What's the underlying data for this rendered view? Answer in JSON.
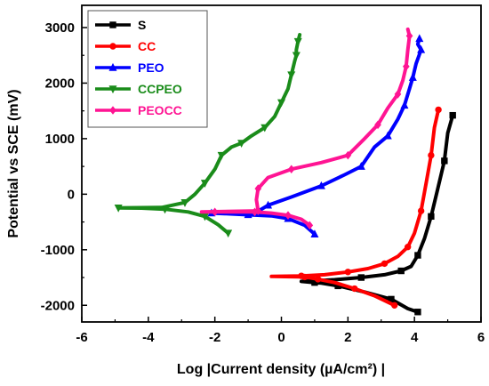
{
  "chart_data": {
    "type": "line",
    "xlabel": "Log |Current density (µA/cm²) |",
    "ylabel": "Potential  vs SCE (mV)",
    "xlim": [
      -6,
      6
    ],
    "ylim": [
      -2300,
      3400
    ],
    "xticks": [
      -6,
      -4,
      -2,
      0,
      2,
      4,
      6
    ],
    "yticks": [
      -2000,
      -1000,
      0,
      1000,
      2000,
      3000
    ],
    "legend_position": "top-left",
    "grid": false,
    "series": [
      {
        "name": "S",
        "color": "#000000",
        "marker": "square",
        "x": [
          4.1,
          3.8,
          3.3,
          2.5,
          1.7,
          1.2,
          1.0,
          0.6,
          1.0,
          1.6,
          2.4,
          3.1,
          3.6,
          3.9,
          4.1,
          4.3,
          4.5,
          4.7,
          4.9,
          5.0,
          5.15
        ],
        "y": [
          -2120,
          -2060,
          -1890,
          -1760,
          -1650,
          -1600,
          -1590,
          -1570,
          -1560,
          -1540,
          -1500,
          -1450,
          -1380,
          -1300,
          -1100,
          -800,
          -400,
          100,
          600,
          1100,
          1420
        ]
      },
      {
        "name": "CC",
        "color": "#ff0000",
        "marker": "circle",
        "x": [
          3.4,
          2.8,
          2.2,
          1.6,
          1.1,
          0.9,
          0.7,
          -0.3,
          0.6,
          1.3,
          2.0,
          2.6,
          3.1,
          3.5,
          3.8,
          4.0,
          4.2,
          4.35,
          4.5,
          4.6,
          4.72
        ],
        "y": [
          -2000,
          -1830,
          -1700,
          -1590,
          -1530,
          -1510,
          -1490,
          -1480,
          -1470,
          -1450,
          -1400,
          -1340,
          -1250,
          -1120,
          -950,
          -700,
          -300,
          200,
          700,
          1200,
          1520
        ]
      },
      {
        "name": "PEO",
        "color": "#0000ff",
        "marker": "triangle-up",
        "x": [
          1.0,
          0.7,
          0.2,
          -0.3,
          -1.0,
          -1.7,
          -2.1,
          -0.8,
          -0.4,
          0.3,
          1.2,
          1.9,
          2.4,
          2.8,
          3.2,
          3.5,
          3.7,
          3.85,
          3.95,
          4.05,
          4.2,
          4.1,
          4.15
        ],
        "y": [
          -720,
          -560,
          -440,
          -390,
          -370,
          -350,
          -340,
          -340,
          -200,
          -50,
          150,
          350,
          500,
          850,
          1050,
          1350,
          1600,
          1900,
          2100,
          2350,
          2600,
          2700,
          2800
        ]
      },
      {
        "name": "CCPEO",
        "color": "#1a8c1a",
        "marker": "triangle-down",
        "x": [
          -1.6,
          -1.9,
          -2.3,
          -2.8,
          -3.5,
          -4.2,
          -4.9,
          -3.6,
          -2.9,
          -2.6,
          -2.3,
          -2.0,
          -1.8,
          -1.5,
          -1.2,
          -0.9,
          -0.5,
          -0.2,
          0.0,
          0.2,
          0.3,
          0.4,
          0.45,
          0.45,
          0.5,
          0.55
        ],
        "y": [
          -700,
          -550,
          -400,
          -320,
          -270,
          -250,
          -245,
          -240,
          -150,
          0,
          200,
          450,
          700,
          850,
          920,
          1050,
          1200,
          1400,
          1650,
          1900,
          2150,
          2400,
          2500,
          2600,
          2750,
          2870
        ]
      },
      {
        "name": "PEOCC",
        "color": "#ff1493",
        "marker": "diamond",
        "x": [
          0.85,
          0.6,
          0.2,
          -0.3,
          -0.8,
          -1.5,
          -2.0,
          -2.4,
          -0.7,
          -0.75,
          -0.7,
          -0.4,
          0.3,
          1.2,
          2.0,
          2.5,
          2.9,
          3.2,
          3.5,
          3.65,
          3.75,
          3.8,
          3.85,
          3.8
        ],
        "y": [
          -560,
          -450,
          -380,
          -340,
          -320,
          -320,
          -320,
          -320,
          -300,
          -100,
          100,
          300,
          450,
          570,
          700,
          1000,
          1250,
          1550,
          1800,
          2050,
          2300,
          2600,
          2850,
          2970
        ]
      }
    ]
  }
}
